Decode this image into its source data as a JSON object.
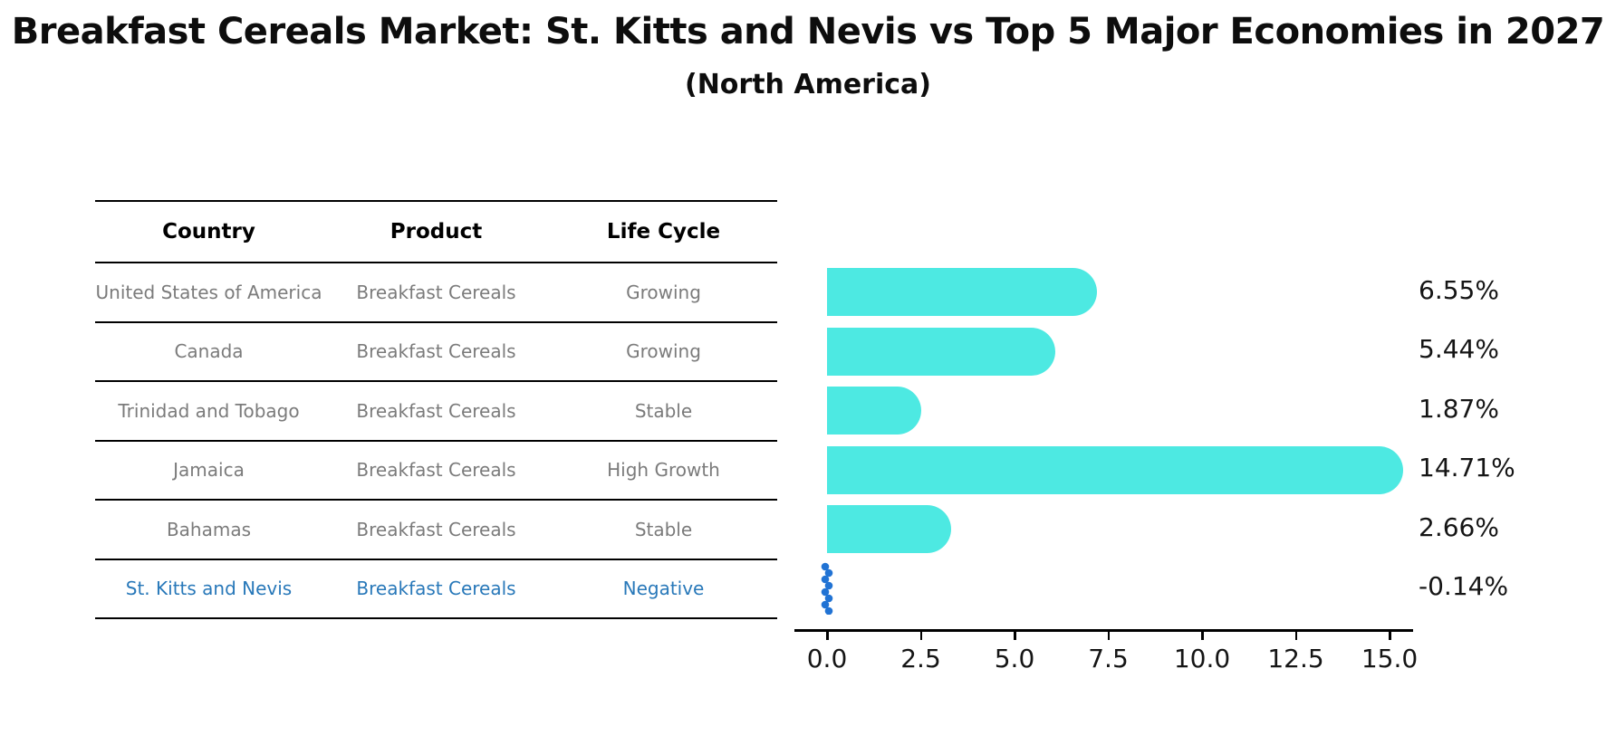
{
  "title": "Breakfast Cereals Market: St. Kitts and Nevis vs Top 5 Major Economies in 2027",
  "subtitle": "(North America)",
  "table": {
    "headers": [
      "Country",
      "Product",
      "Life Cycle"
    ],
    "rows": [
      {
        "country": "United States of America",
        "product": "Breakfast Cereals",
        "life_cycle": "Growing",
        "highlighted": false
      },
      {
        "country": "Canada",
        "product": "Breakfast Cereals",
        "life_cycle": "Growing",
        "highlighted": false
      },
      {
        "country": "Trinidad and Tobago",
        "product": "Breakfast Cereals",
        "life_cycle": "Stable",
        "highlighted": false
      },
      {
        "country": "Jamaica",
        "product": "Breakfast Cereals",
        "life_cycle": "High Growth",
        "highlighted": false
      },
      {
        "country": "Bahamas",
        "product": "Breakfast Cereals",
        "life_cycle": "Stable",
        "highlighted": false
      },
      {
        "country": "St. Kitts and Nevis",
        "product": "Breakfast Cereals",
        "life_cycle": "Negative",
        "highlighted": true
      }
    ]
  },
  "chart_data": {
    "type": "bar",
    "orientation": "horizontal",
    "title": "Breakfast Cereals Market: St. Kitts and Nevis vs Top 5 Major Economies in 2027 (North America)",
    "categories": [
      "United States of America",
      "Canada",
      "Trinidad and Tobago",
      "Jamaica",
      "Bahamas",
      "St. Kitts and Nevis"
    ],
    "values": [
      6.55,
      5.44,
      1.87,
      14.71,
      2.66,
      -0.14
    ],
    "value_labels": [
      "6.55%",
      "5.44%",
      "1.87%",
      "14.71%",
      "2.66%",
      "-0.14%"
    ],
    "x_tick_labels": [
      "0.0",
      "2.5",
      "5.0",
      "7.5",
      "10.0",
      "12.5",
      "15.0"
    ],
    "x_tick_values": [
      0,
      2.5,
      5,
      7.5,
      10,
      12.5,
      15
    ],
    "xlim": [
      0,
      15.7
    ],
    "xlabel": "",
    "ylabel": "",
    "grid": false,
    "legend": null,
    "bar_color": "#4DE9E2",
    "negative_marker_color": "#2173D4",
    "negative_marker_style": "dotted-vertical-line"
  },
  "colors": {
    "bar": "#4DE9E2",
    "highlight_text": "#2878B9",
    "marker_blue": "#2173D4",
    "cell_text": "#7B7B7B",
    "header_text": "#000000",
    "axis_text": "#151515"
  }
}
